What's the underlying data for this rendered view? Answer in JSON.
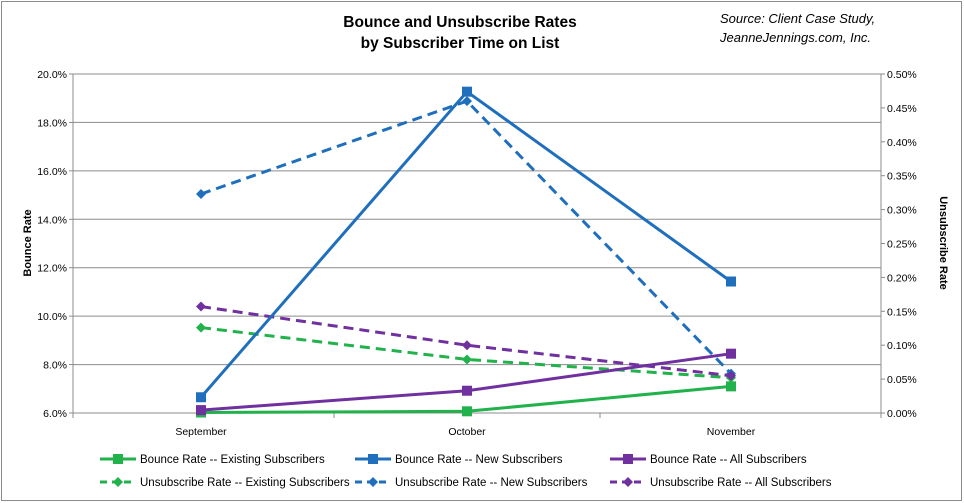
{
  "chart_data": {
    "type": "line",
    "title": "Bounce and Unsubscribe Rates by Subscriber Time on List",
    "title_lines": [
      "Bounce and Unsubscribe Rates",
      "by Subscriber Time on List"
    ],
    "source_lines": [
      "Source: Client Case Study,",
      "JeanneJennings.com, Inc."
    ],
    "categories": [
      "September",
      "October",
      "November"
    ],
    "y_left": {
      "label": "Bounce Rate",
      "min": 0.06,
      "max": 0.2,
      "step": 0.02,
      "ticks": [
        "6.0%",
        "8.0%",
        "10.0%",
        "12.0%",
        "14.0%",
        "16.0%",
        "18.0%",
        "20.0%"
      ]
    },
    "y_right": {
      "label": "Unsubscribe Rate",
      "min": 0.0,
      "max": 0.005,
      "step": 0.0005,
      "ticks": [
        "0.00%",
        "0.05%",
        "0.10%",
        "0.15%",
        "0.20%",
        "0.25%",
        "0.30%",
        "0.35%",
        "0.40%",
        "0.45%",
        "0.50%"
      ]
    },
    "grid": "horizontal",
    "legend_position": "bottom",
    "series": [
      {
        "name": "Bounce Rate -- Existing Subscribers",
        "axis": "left",
        "color": "#21b24b",
        "dash": false,
        "marker": "square",
        "values": [
          0.0602,
          0.0607,
          0.071
        ]
      },
      {
        "name": "Bounce Rate -- New Subscribers",
        "axis": "left",
        "color": "#1f6fbd",
        "dash": false,
        "marker": "square",
        "values": [
          0.0665,
          0.1927,
          0.1143
        ]
      },
      {
        "name": "Bounce Rate -- All Subscribers",
        "axis": "left",
        "color": "#7030a0",
        "dash": false,
        "marker": "square",
        "values": [
          0.0612,
          0.0692,
          0.0845
        ]
      },
      {
        "name": "Unsubscribe Rate -- Existing Subscribers",
        "axis": "right",
        "color": "#21b24b",
        "dash": true,
        "marker": "diamond",
        "values": [
          0.00126,
          0.00079,
          0.00052
        ]
      },
      {
        "name": "Unsubscribe Rate -- New Subscribers",
        "axis": "right",
        "color": "#1f6fbd",
        "dash": true,
        "marker": "diamond",
        "values": [
          0.00323,
          0.0046,
          0.00058
        ]
      },
      {
        "name": "Unsubscribe Rate -- All Subscribers",
        "axis": "right",
        "color": "#7030a0",
        "dash": true,
        "marker": "diamond",
        "values": [
          0.00157,
          0.001,
          0.00055
        ]
      }
    ]
  }
}
